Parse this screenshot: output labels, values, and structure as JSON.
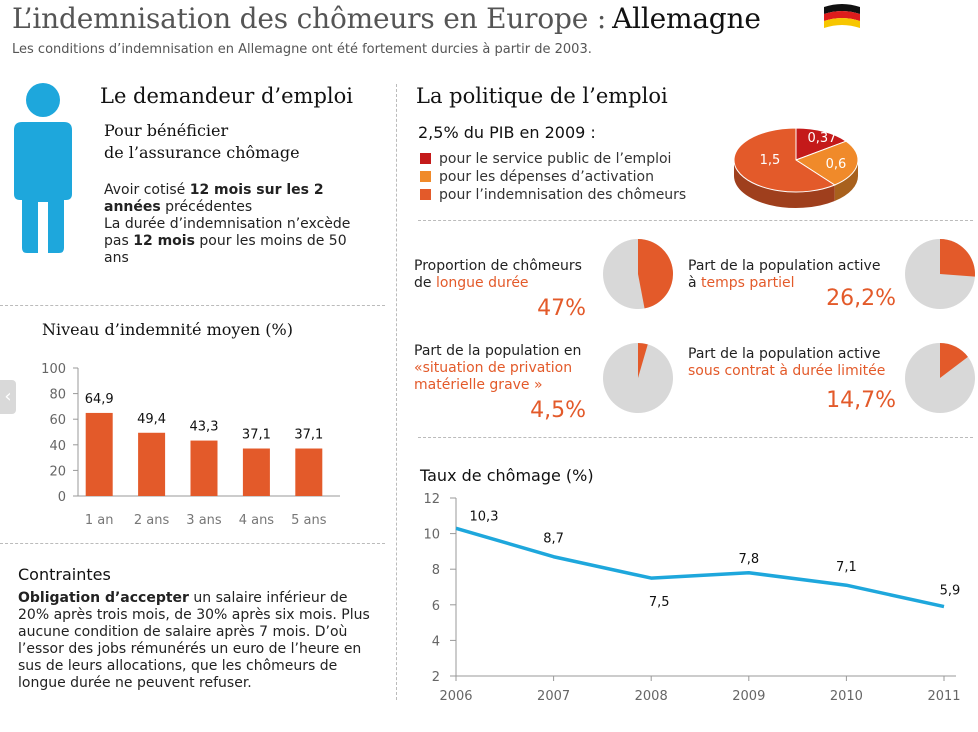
{
  "header": {
    "title": "L’indemnisation des chômeurs en Europe :",
    "country": "Allemagne",
    "subtitle": "Les conditions d’indemnisation en Allemagne ont été fortement durcies à partir de 2003."
  },
  "applicant": {
    "heading": "Le demandeur d’emploi",
    "subheading_line1": "Pour bénéficier",
    "subheading_line2": "de l’assurance chômage",
    "req1_prefix": "Avoir cotisé ",
    "req1_bold": "12 mois sur les 2 années",
    "req1_suffix": " précédentes",
    "req2_prefix": "La durée d’indemnisation n’excède pas ",
    "req2_bold": "12 mois",
    "req2_suffix": " pour les moins de 50 ans"
  },
  "constraints": {
    "heading": "Contraintes",
    "bold": "Obligation d’accepter",
    "text": " un salaire inférieur de 20% après trois mois, de 30% après six mois. Plus aucune condition de salaire après 7 mois. D’où l’essor des jobs rémunérés un euro de l’heure en sus de leurs allocations, que les chômeurs de longue durée ne peuvent refuser."
  },
  "policy": {
    "heading": "La politique de l’emploi",
    "gdp_label": "2,5% du PIB en 2009 :",
    "legend": [
      {
        "label": "pour le service public de l’emploi",
        "color": "#c41a1a"
      },
      {
        "label": "pour les dépenses d’activation",
        "color": "#f08a2a"
      },
      {
        "label": "pour l’indemnisation des chômeurs",
        "color": "#e35a2a"
      }
    ]
  },
  "stats": [
    {
      "line1": "Proportion de chômeurs",
      "line2_plain": "de ",
      "line2_orange": "longue durée",
      "line3": "",
      "value_label": "47%",
      "value": 47
    },
    {
      "line1": "Part de la population active",
      "line2_plain": "à ",
      "line2_orange": "temps partiel",
      "line3": "",
      "value_label": "26,2%",
      "value": 26.2
    },
    {
      "line1": "Part de la population en",
      "line2_plain": "",
      "line2_orange": "«situation de privation",
      "line3": "matérielle grave »",
      "value_label": "4,5%",
      "value": 4.5
    },
    {
      "line1": "Part de la population active",
      "line2_plain": "",
      "line2_orange": "sous contrat à durée limitée",
      "line3": "",
      "value_label": "14,7%",
      "value": 14.7
    }
  ],
  "chart_data": [
    {
      "type": "pie",
      "title": "",
      "labels": [
        "pour le service public de l’emploi",
        "pour les dépenses d’activation",
        "pour l’indemnisation des chômeurs"
      ],
      "values": [
        0.37,
        0.6,
        1.5
      ],
      "value_labels": [
        "0,37",
        "0,6",
        "1,5"
      ],
      "colors": [
        "#c41a1a",
        "#f08a2a",
        "#e35a2a"
      ]
    },
    {
      "type": "bar",
      "title": "Niveau d’indemnité moyen (%)",
      "categories": [
        "1 an",
        "2 ans",
        "3 ans",
        "4 ans",
        "5 ans"
      ],
      "values": [
        64.9,
        49.4,
        43.3,
        37.1,
        37.1
      ],
      "value_labels": [
        "64,9",
        "49,4",
        "43,3",
        "37,1",
        "37,1"
      ],
      "ylim": [
        0,
        100
      ],
      "yticks": [
        "0",
        "20",
        "40",
        "60",
        "80",
        "100"
      ],
      "color": "#e35a2a"
    },
    {
      "type": "line",
      "title": "Taux de chômage (%)",
      "x": [
        "2006",
        "2007",
        "2008",
        "2009",
        "2010",
        "2011"
      ],
      "values": [
        10.3,
        8.7,
        7.5,
        7.8,
        7.1,
        5.9
      ],
      "value_labels": [
        "10,3",
        "8,7",
        "7,5",
        "7,8",
        "7,1",
        "5,9"
      ],
      "ylim": [
        2,
        12
      ],
      "yticks": [
        "2",
        "4",
        "6",
        "8",
        "10",
        "12"
      ],
      "color": "#1ea7dc"
    }
  ]
}
